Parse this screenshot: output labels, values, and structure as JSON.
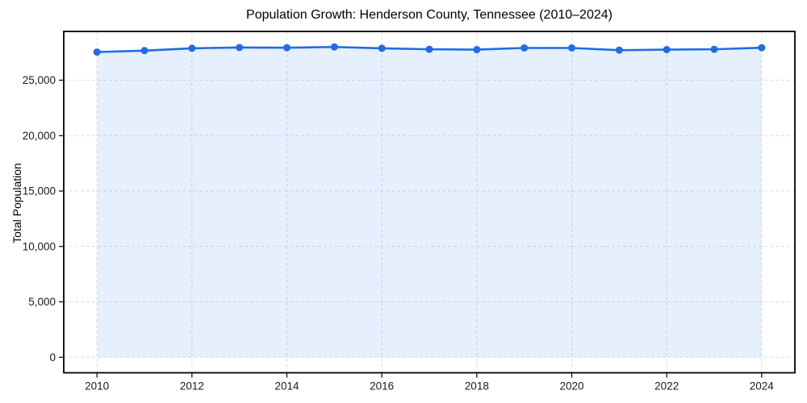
{
  "chart_data": {
    "type": "line",
    "title": "Population Growth: Henderson County, Tennessee (2010–2024)",
    "xlabel": "",
    "ylabel": "Total Population",
    "x": [
      2010,
      2011,
      2012,
      2013,
      2014,
      2015,
      2016,
      2017,
      2018,
      2019,
      2020,
      2021,
      2022,
      2023,
      2024
    ],
    "series": [
      {
        "name": "Total Population",
        "values": [
          27540,
          27670,
          27880,
          27950,
          27930,
          28000,
          27880,
          27790,
          27760,
          27910,
          27910,
          27710,
          27760,
          27790,
          27930
        ]
      }
    ],
    "x_ticks": [
      2010,
      2012,
      2014,
      2016,
      2018,
      2020,
      2022,
      2024
    ],
    "x_tick_labels": [
      "2010",
      "2012",
      "2014",
      "2016",
      "2018",
      "2020",
      "2022",
      "2024"
    ],
    "y_ticks": [
      0,
      5000,
      10000,
      15000,
      20000,
      25000
    ],
    "y_tick_labels": [
      "0",
      "5,000",
      "10,000",
      "15,000",
      "20,000",
      "25,000"
    ],
    "xlim": [
      2009.3,
      2024.7
    ],
    "ylim": [
      -1400,
      29400
    ],
    "fill_baseline": 0,
    "grid": true,
    "grid_style": "dashed",
    "legend_position": "none",
    "line_color": "#1f6ce6",
    "fill_color": "rgba(31, 108, 230, 0.11)",
    "grid_color": "#d9dde3",
    "spine_color": "#000000",
    "tick_label_color": "#1a1a1a",
    "marker": "circle"
  }
}
